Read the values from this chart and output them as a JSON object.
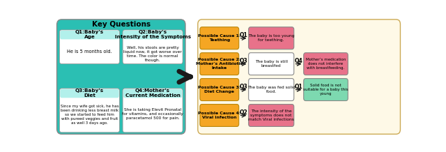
{
  "title": "Key Questions",
  "left_bg": "#2bbfb3",
  "left_inner_bg": "#ffffff",
  "left_header_bg": "#b2f0eb",
  "right_outer_bg": "#fef9e7",
  "orange_box": "#f5a623",
  "pink_box": "#e8728a",
  "white_box": "#ffffff",
  "green_box": "#7dd9b0",
  "q_labels": [
    "Q1",
    "Q3",
    "Q3",
    "Q2"
  ],
  "q2_labels": [
    "Q4",
    "Q1"
  ],
  "questions": [
    {
      "header": "Q1:Baby's\nAge",
      "body": "He is 5 months old."
    },
    {
      "header": "Q2:Baby's\nIntensity of the Symptoms",
      "body": "Well, his stools are pretty\nliquid now, it got worse over\ntime. The color is normal\nthough."
    },
    {
      "header": "Q3:Baby's\nDiet",
      "body": "Since my wife got sick, he has\nbeen drinking less breast milk\nso we started to feed him\nwith pureed veggies and fruit\nas well 3 days ago."
    },
    {
      "header": "Q4:Mother's\nCurrent Medication",
      "body": "She is taking Elevit Pronatal\nfor vitamins, and occasionally\nparacetamol 500 for pain."
    }
  ],
  "causes": [
    "Possible Cause 1:\nTeething",
    "Possible Cause 2:\nMother's Antibiotic\nIntake",
    "Possible Cause 3:\nDiet Change",
    "Possible Cause 4:\nViral infection"
  ],
  "middle_boxes": [
    "The baby is too young\nfor teething.",
    "The baby is still\nbreastfed",
    "The baby was fed solid\nfood.",
    "The intensity of the\nsymptoms does not\nmatch Viral infections"
  ],
  "right_boxes": [
    "Mother’s medication\ndoes not interfere\nwith breastfeeding.",
    "Solid food is not\nsuitable for a baby this\nyoung"
  ],
  "middle_colors": [
    "#e8728a",
    "#ffffff",
    "#ffffff",
    "#e8728a"
  ],
  "right_colors": [
    "#e8728a",
    "#7dd9b0"
  ],
  "arrow_color": "#1a1a1a"
}
